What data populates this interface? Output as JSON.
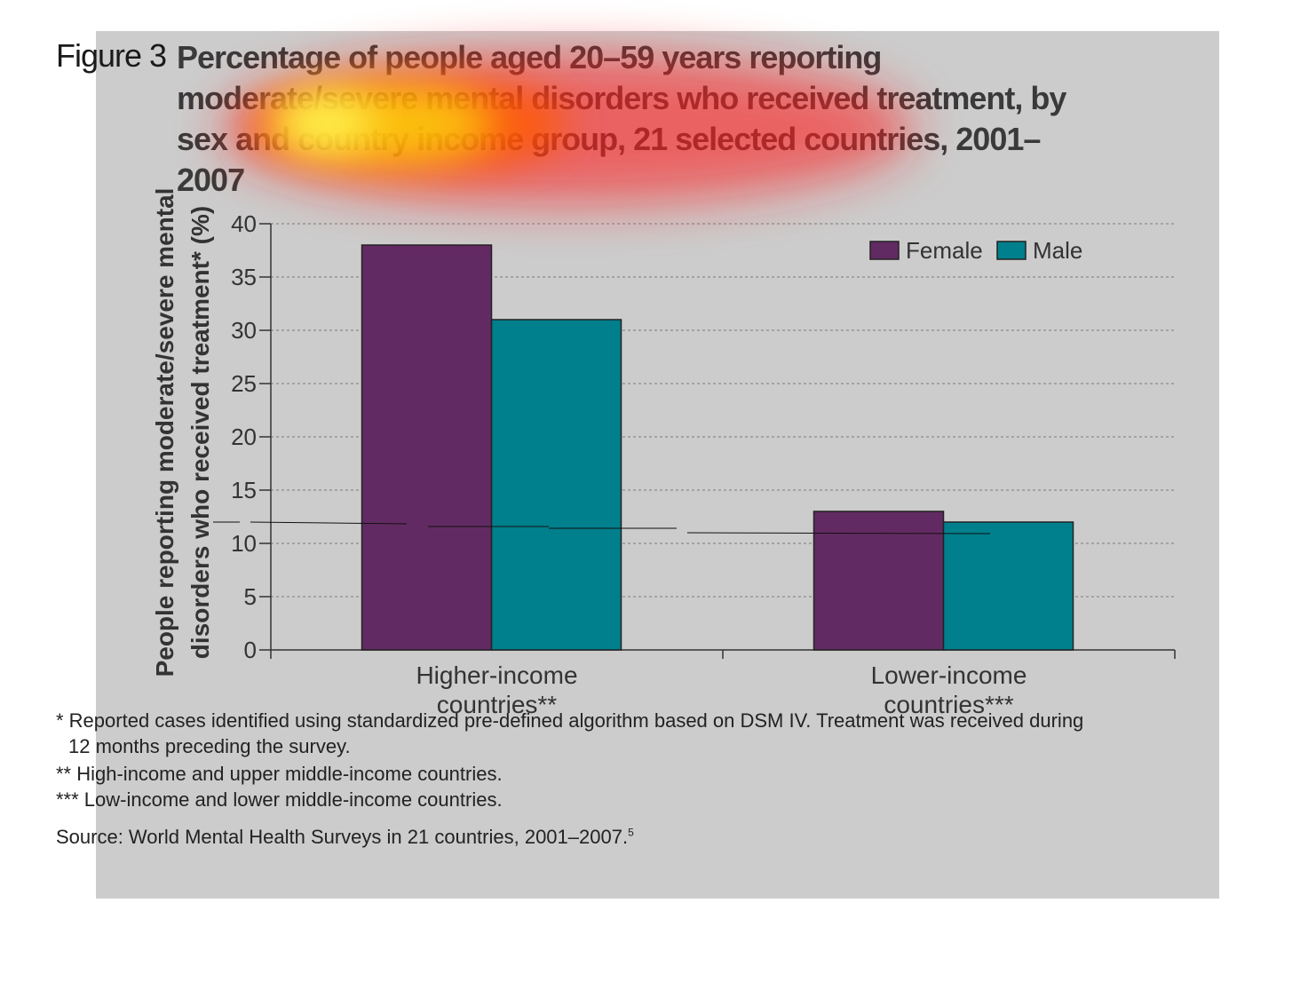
{
  "figure": {
    "label": "Figure 3",
    "title": "Percentage of people aged 20–59 years reporting moderate/severe mental disorders who received treatment, by sex and country income group, 21 selected countries, 2001–2007"
  },
  "chart_data": {
    "type": "bar",
    "categories": [
      "Higher-income countries**",
      "Lower-income countries***"
    ],
    "category_lines": [
      [
        "Higher-income",
        "countries**"
      ],
      [
        "Lower-income",
        "countries***"
      ]
    ],
    "series": [
      {
        "name": "Female",
        "values": [
          38,
          13
        ],
        "color": "#622a63"
      },
      {
        "name": "Male",
        "values": [
          31,
          12
        ],
        "color": "#007f8c"
      }
    ],
    "ylabel": "People reporting moderate/severe mental disorders who received treatment* (%)",
    "ylabel_lines": [
      "People reporting moderate/severe mental",
      "disorders who received treatment* (%)"
    ],
    "ylim": [
      0,
      40
    ],
    "yticks": [
      0,
      5,
      10,
      15,
      20,
      25,
      30,
      35,
      40
    ],
    "grid": true,
    "legend_position": "top-right"
  },
  "notes": {
    "note1_line1": "* Reported cases identified using standardized pre-defined algorithm based on DSM IV. Treatment was received during",
    "note1_line2": "12 months preceding the survey.",
    "note2": "** High-income and upper middle-income countries.",
    "note3": "*** Low-income and lower middle-income countries."
  },
  "source": {
    "text": "Source: World Mental Health Surveys in 21 countries, 2001–2007.",
    "ref": "5"
  }
}
